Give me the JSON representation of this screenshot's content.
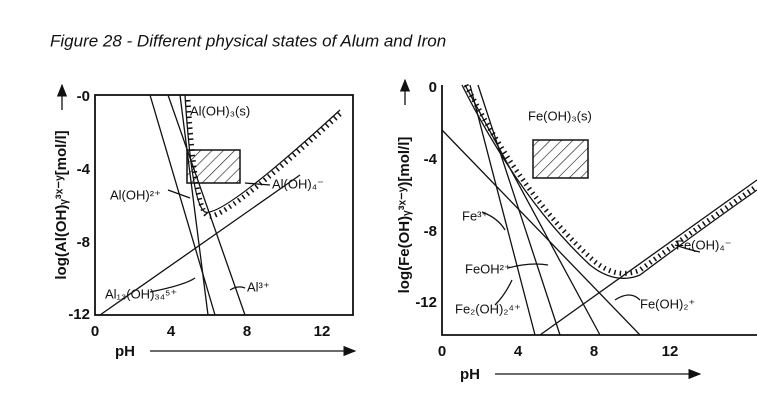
{
  "title": "Figure 28 - Different physical states of Alum and Iron",
  "panels": [
    {
      "y_label": "log(Al(OH)ᵧ³ˣ⁻ʸ[mol/l]",
      "x_label": "pH",
      "y_ticks": [
        "-0",
        "-4",
        "-8",
        "-12"
      ],
      "x_ticks": [
        "0",
        "4",
        "8",
        "12"
      ],
      "labels": [
        "Al(OH)₃(s)",
        "Al(OH)²⁺",
        "Al(OH)₄⁻",
        "Al₁₃(OH)₃₄⁵⁺",
        "Al³⁺"
      ]
    },
    {
      "y_label": "log(Fe(OH)ᵧ³ˣ⁻ʸ)[mol/l]",
      "x_label": "pH",
      "y_ticks": [
        "0",
        "-4",
        "-8",
        "-12"
      ],
      "x_ticks": [
        "0",
        "4",
        "8",
        "12"
      ],
      "labels": [
        "Fe(OH)₃(s)",
        "Fe³⁺",
        "FeOH²⁺",
        "Fe(OH)₄⁻",
        "Fe₂(OH)₂⁴⁺",
        "Fe(OH)₂⁺"
      ]
    }
  ]
}
